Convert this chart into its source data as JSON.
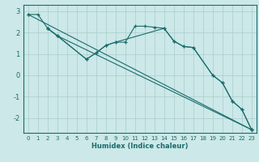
{
  "xlabel": "Humidex (Indice chaleur)",
  "ylabel": "",
  "bg_color": "#cce8e8",
  "line_color": "#1a6b6b",
  "grid_color": "#aacccc",
  "xlim": [
    -0.5,
    23.5
  ],
  "ylim": [
    -2.7,
    3.3
  ],
  "yticks": [
    -2,
    -1,
    0,
    1,
    2,
    3
  ],
  "xticks": [
    0,
    1,
    2,
    3,
    4,
    5,
    6,
    7,
    8,
    9,
    10,
    11,
    12,
    13,
    14,
    15,
    16,
    17,
    18,
    19,
    20,
    21,
    22,
    23
  ],
  "lines": [
    {
      "x": [
        0,
        1,
        2,
        3,
        23
      ],
      "y": [
        2.85,
        2.85,
        2.2,
        1.85,
        -2.55
      ]
    },
    {
      "x": [
        2,
        3,
        6,
        7,
        8,
        9,
        10,
        11,
        12,
        13,
        14,
        15,
        16,
        17,
        19,
        20,
        21,
        22,
        23
      ],
      "y": [
        2.2,
        1.85,
        0.75,
        1.05,
        1.4,
        1.55,
        1.55,
        2.3,
        2.3,
        2.25,
        2.2,
        1.6,
        1.35,
        1.3,
        0.0,
        -0.35,
        -1.2,
        -1.6,
        -2.55
      ]
    },
    {
      "x": [
        2,
        3,
        6,
        7,
        8,
        9,
        14,
        15,
        16,
        17,
        19,
        20,
        21,
        22,
        23
      ],
      "y": [
        2.2,
        1.85,
        0.75,
        1.05,
        1.4,
        1.55,
        2.2,
        1.6,
        1.35,
        1.3,
        0.0,
        -0.35,
        -1.2,
        -1.6,
        -2.55
      ]
    },
    {
      "x": [
        0,
        23
      ],
      "y": [
        2.85,
        -2.55
      ]
    }
  ]
}
